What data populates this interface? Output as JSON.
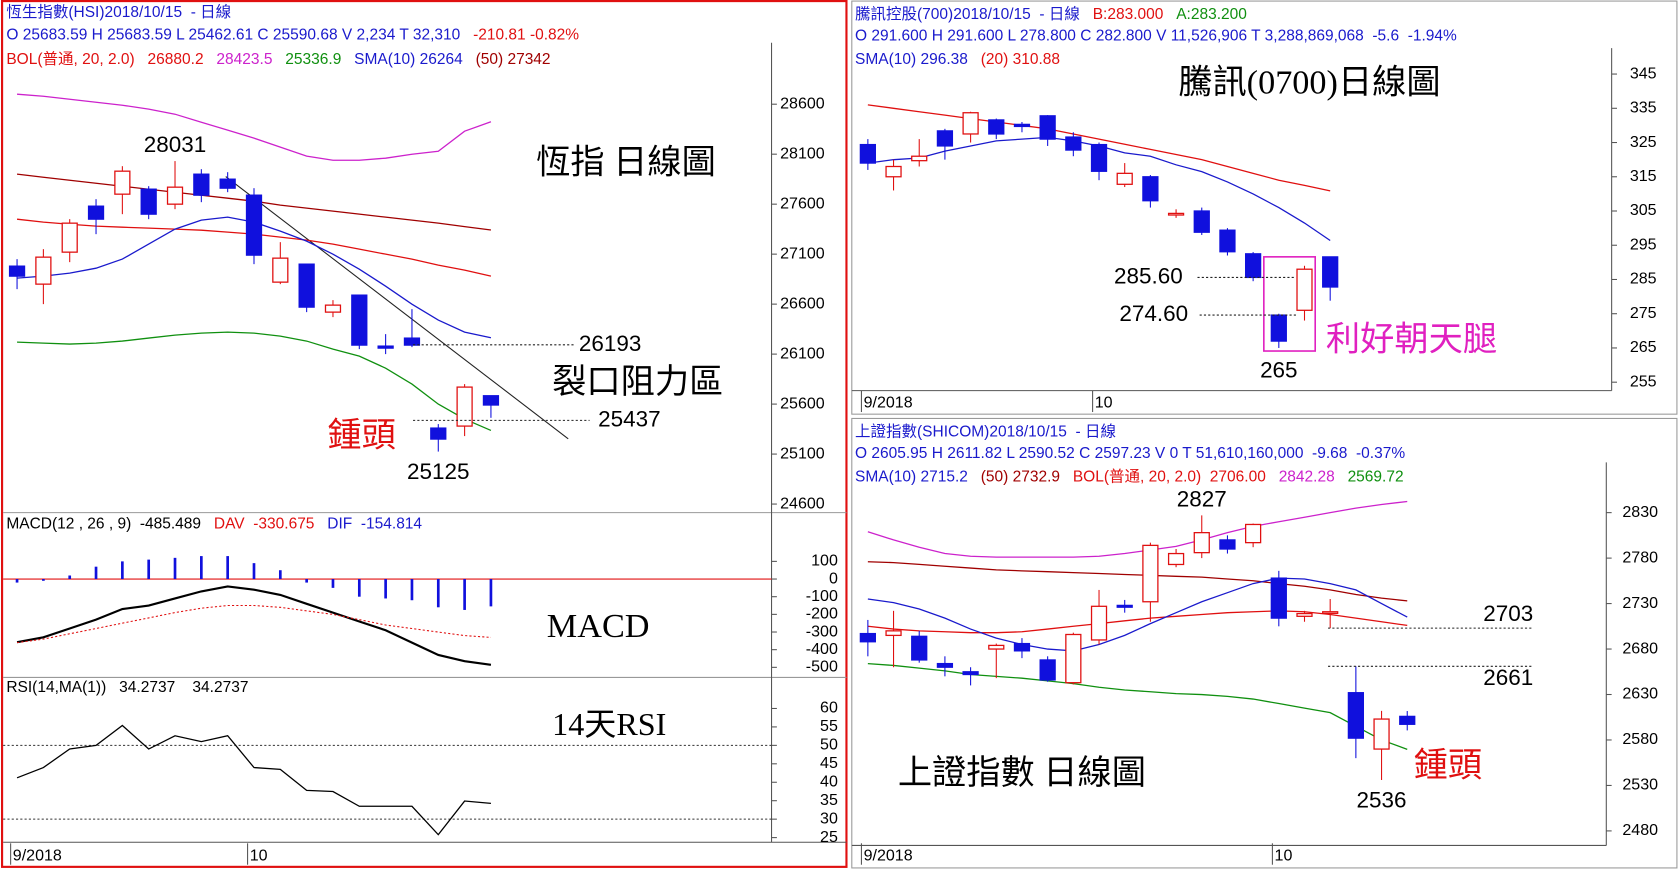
{
  "chart_data": [
    {
      "type": "candlestick",
      "header": [
        [
          {
            "text": "恆生指數(HSI)2018/10/15  - 日線",
            "color": "#1a1acc"
          }
        ],
        [
          {
            "text": "O 25683.59 H 25683.59 L 25462.61 C 25590.68 V 2,234 T 32,310",
            "color": "#1a1acc"
          },
          {
            "text": "-210.81 -0.82%",
            "color": "#e01010"
          }
        ],
        [
          {
            "text": "BOL(普通, 20, 2.0)",
            "color": "#e01010"
          },
          {
            "text": "26880.2",
            "color": "#e01010"
          },
          {
            "text": "28423.5",
            "color": "#cc22cc"
          },
          {
            "text": "25336.9",
            "color": "#109010"
          },
          {
            "text": "SMA(10) 26264",
            "color": "#1a1acc"
          },
          {
            "text": "(50) 27342",
            "color": "#a00000"
          }
        ]
      ],
      "open": [
        26980,
        26800,
        27120,
        27580,
        27700,
        27750,
        27600,
        27900,
        27850,
        27690,
        26820,
        27000,
        26520,
        26690,
        26180,
        26260,
        25360,
        25380,
        25683.59
      ],
      "close": [
        26880,
        27070,
        27410,
        27450,
        27930,
        27500,
        27770,
        27690,
        27760,
        27090,
        27060,
        26570,
        26590,
        26190,
        26160,
        26190,
        25250,
        25770,
        25590.68
      ],
      "high": [
        27050,
        27150,
        27450,
        27650,
        27980,
        27780,
        28031,
        27950,
        27920,
        27760,
        27220,
        27000,
        26640,
        26690,
        26300,
        26550,
        25400,
        25800,
        25683.59
      ],
      "low": [
        26750,
        26600,
        27020,
        27300,
        27500,
        27450,
        27550,
        27620,
        27720,
        27000,
        26800,
        26520,
        26470,
        26150,
        26100,
        26170,
        25125,
        25280,
        25462.61
      ],
      "up_color": "#e01010",
      "down_color": "#1010dd",
      "overlays": [
        {
          "color": "#cc22cc",
          "values": [
            28700,
            28680,
            28650,
            28620,
            28590,
            28550,
            28500,
            28420,
            28340,
            28260,
            28170,
            28080,
            28040,
            28040,
            28060,
            28100,
            28130,
            28330,
            28423.5
          ]
        },
        {
          "color": "#a00000",
          "values": [
            27900,
            27870,
            27840,
            27810,
            27780,
            27750,
            27720,
            27690,
            27660,
            27630,
            27590,
            27560,
            27530,
            27500,
            27470,
            27440,
            27410,
            27375,
            27342
          ]
        },
        {
          "color": "#e01010",
          "values": [
            27450,
            27420,
            27400,
            27380,
            27370,
            27360,
            27350,
            27340,
            27320,
            27300,
            27270,
            27240,
            27200,
            27150,
            27100,
            27050,
            26990,
            26940,
            26880.2
          ]
        },
        {
          "color": "#109010",
          "values": [
            26220,
            26210,
            26200,
            26210,
            26230,
            26260,
            26290,
            26310,
            26320,
            26310,
            26280,
            26230,
            26150,
            26080,
            25960,
            25800,
            25600,
            25450,
            25336.9
          ]
        },
        {
          "color": "#1a1acc",
          "values": [
            26860,
            26880,
            26910,
            26960,
            27050,
            27200,
            27350,
            27440,
            27470,
            27420,
            27330,
            27230,
            27100,
            26950,
            26780,
            26600,
            26440,
            26320,
            26264
          ]
        }
      ],
      "ylim": [
        24525,
        29000
      ],
      "yticks": [
        28600,
        28100,
        27600,
        27100,
        26600,
        26100,
        25600,
        25100,
        24600
      ],
      "levels": [
        26193,
        25437
      ],
      "annotations": [
        {
          "text": "恆指 日線圖",
          "color": "#000000"
        },
        {
          "text": "裂口阻力區",
          "color": "#000000"
        },
        {
          "text": "鍾頭",
          "color": "#e01010"
        }
      ]
    },
    {
      "type": "macd",
      "header": [
        [
          {
            "text": "MACD(12 , 26 , 9)  -485.489",
            "color": "#000000"
          },
          {
            "text": "DAV  -330.675",
            "color": "#e01010"
          },
          {
            "text": "DIF  -154.814",
            "color": "#1a1acc"
          }
        ]
      ],
      "histogram": [
        -20,
        -10,
        20,
        70,
        100,
        110,
        120,
        130,
        130,
        90,
        50,
        -20,
        -50,
        -100,
        -110,
        -120,
        -160,
        -175,
        -154.814
      ],
      "histogram_color": "#1010dd",
      "zero_color": "#e01010",
      "overlays": [
        {
          "color": "#000000",
          "values": [
            -358,
            -330,
            -280,
            -230,
            -170,
            -150,
            -110,
            -70,
            -42,
            -60,
            -90,
            -140,
            -190,
            -240,
            -290,
            -360,
            -430,
            -465,
            -485.489
          ]
        },
        {
          "color": "#e01010",
          "line_style": "dotted",
          "values": [
            -360,
            -340,
            -310,
            -280,
            -250,
            -220,
            -190,
            -165,
            -150,
            -150,
            -160,
            -180,
            -200,
            -230,
            -260,
            -280,
            -300,
            -320,
            -330.675
          ]
        }
      ],
      "ylim": [
        -539,
        267
      ],
      "yticks": [
        100,
        0,
        -100,
        -200,
        -300,
        -400,
        -500
      ],
      "annotations": [
        {
          "text": "MACD",
          "color": "#000000"
        }
      ]
    },
    {
      "type": "line",
      "header": [
        [
          {
            "text": "RSI(14,MA(1))   34.2737    34.2737",
            "color": "#000000"
          }
        ]
      ],
      "overlays": [
        {
          "color": "#000000",
          "values": [
            41.2,
            44,
            49,
            50,
            55.4,
            49,
            52.6,
            51,
            52.6,
            44,
            43.5,
            37.8,
            37.5,
            33.5,
            33.5,
            33.5,
            25.8,
            34.9,
            34.2737
          ]
        }
      ],
      "ref_lines": [
        50,
        30
      ],
      "ylim": [
        22,
        62.9
      ],
      "yticks": [
        60,
        55,
        50,
        45,
        40,
        35,
        30,
        25
      ],
      "categories": [
        "9/2018",
        null,
        null,
        null,
        null,
        null,
        null,
        null,
        null,
        "10",
        null,
        null,
        null,
        null,
        null,
        null,
        null,
        null,
        null
      ],
      "annotations": [
        {
          "text": "14天RSI",
          "color": "#000000"
        }
      ]
    },
    {
      "type": "candlestick",
      "header": [
        [
          {
            "text": "騰訊控股(700)2018/10/15  - 日線",
            "color": "#1a1acc"
          },
          {
            "text": "B:283.000",
            "color": "#e01010"
          },
          {
            "text": "A:283.200",
            "color": "#109010"
          }
        ],
        [
          {
            "text": "O 291.600 H 291.600 L 278.800 C 282.800 V 11,526,906 T 3,288,869,068  -5.6  -1.94%",
            "color": "#1a1acc"
          }
        ],
        [
          {
            "text": "SMA(10) 296.38",
            "color": "#1a1acc"
          },
          {
            "text": "(20) 310.88",
            "color": "#e01010"
          }
        ]
      ],
      "open": [
        324.4,
        315,
        319.7,
        328.4,
        327.5,
        331.6,
        330.3,
        332.8,
        326.6,
        324.4,
        312.8,
        315,
        304,
        305,
        299.4,
        292.5,
        274.6,
        276,
        291.6
      ],
      "close": [
        319,
        318,
        321,
        324,
        333.7,
        327.5,
        329.7,
        326,
        322.8,
        316.6,
        316,
        308,
        304.3,
        298.8,
        293.1,
        285.6,
        267,
        288,
        282.8
      ],
      "high": [
        326,
        320,
        326,
        329,
        334,
        332,
        331,
        333,
        328,
        325,
        319,
        315.5,
        305.5,
        306,
        300,
        293,
        275,
        289,
        291.6
      ],
      "low": [
        317,
        311,
        318,
        320,
        325,
        326,
        328,
        324,
        321,
        314,
        312,
        306,
        303,
        298,
        292,
        284.5,
        265,
        273,
        278.8
      ],
      "up_color": "#e01010",
      "down_color": "#1010dd",
      "overlays": [
        {
          "color": "#1a1acc",
          "values": [
            319,
            320,
            320.5,
            322.5,
            324,
            325.5,
            326,
            326.5,
            325.5,
            324,
            322,
            321,
            318.5,
            316.5,
            313.5,
            310,
            306,
            301.5,
            296.38
          ]
        },
        {
          "color": "#e01010",
          "values": [
            336,
            335,
            334,
            333,
            332,
            331,
            330,
            329,
            327.5,
            326,
            324.5,
            323,
            321.5,
            320,
            318,
            316,
            314,
            312.5,
            310.88
          ]
        }
      ],
      "ylim": [
        251.6,
        351
      ],
      "yticks": [
        345,
        335,
        325,
        315,
        305,
        295,
        285,
        275,
        265,
        255
      ],
      "categories": [
        "9/2018",
        null,
        null,
        null,
        null,
        null,
        null,
        null,
        null,
        "10",
        null,
        null,
        null,
        null,
        null,
        null,
        null,
        null,
        null
      ],
      "levels": [
        {
          "value": 285.6,
          "label": "285.60"
        },
        {
          "value": 274.6,
          "label": "274.60"
        }
      ],
      "annotations": [
        {
          "text": "騰訊(0700)日線圖",
          "color": "#000000"
        },
        {
          "text": "利好朝天腿",
          "color": "#e020c0"
        }
      ]
    },
    {
      "type": "candlestick",
      "header": [
        [
          {
            "text": "上證指數(SHICOM)2018/10/15  - 日線",
            "color": "#1a1acc"
          }
        ],
        [
          {
            "text": "O 2605.95 H 2611.82 L 2590.52 C 2597.23 V 0 T 51,610,160,000  -9.68  -0.37%",
            "color": "#1a1acc"
          }
        ],
        [
          {
            "text": "SMA(10) 2715.2",
            "color": "#1a1acc"
          },
          {
            "text": "(50) 2732.9",
            "color": "#a00000"
          },
          {
            "text": "BOL(普通, 20, 2.0)  2706.00",
            "color": "#e01010"
          },
          {
            "text": "2842.28",
            "color": "#cc22cc"
          },
          {
            "text": "2569.72",
            "color": "#109010"
          }
        ]
      ],
      "open": [
        2697,
        2695,
        2694,
        2664,
        2655,
        2680,
        2686,
        2668,
        2643,
        2690,
        2728,
        2732,
        2773,
        2786,
        2800,
        2797,
        2758,
        2716,
        2720,
        2632,
        2570,
        2605.95
      ],
      "close": [
        2688,
        2700,
        2668,
        2660,
        2652,
        2684,
        2678,
        2646,
        2696,
        2727,
        2726,
        2794,
        2785,
        2808,
        2790,
        2817,
        2714,
        2719,
        2721,
        2582,
        2603,
        2597.23
      ],
      "high": [
        2712,
        2722,
        2700,
        2672,
        2660,
        2686,
        2692,
        2672,
        2698,
        2745,
        2734,
        2797,
        2790,
        2827,
        2805,
        2818,
        2766,
        2722,
        2735,
        2661,
        2612,
        2611.82
      ],
      "low": [
        2672,
        2660,
        2665,
        2650,
        2640,
        2648,
        2670,
        2644,
        2641,
        2685,
        2720,
        2710,
        2770,
        2780,
        2785,
        2792,
        2705,
        2710,
        2703,
        2560,
        2536,
        2590.52
      ],
      "up_color": "#e01010",
      "down_color": "#1010dd",
      "overlays": [
        {
          "color": "#cc22cc",
          "values": [
            2809,
            2800,
            2792,
            2785,
            2782,
            2781,
            2781,
            2781,
            2781,
            2782,
            2785,
            2789,
            2793,
            2800,
            2808,
            2815,
            2820,
            2825,
            2830,
            2835,
            2839,
            2842.28
          ]
        },
        {
          "color": "#a00000",
          "values": [
            2776,
            2775,
            2773,
            2771,
            2769,
            2767,
            2766,
            2765,
            2764,
            2763,
            2762,
            2761,
            2760,
            2759,
            2757,
            2755,
            2752,
            2749,
            2745,
            2740,
            2736,
            2732.9
          ]
        },
        {
          "color": "#e01010",
          "values": [
            2705,
            2702,
            2700,
            2699,
            2698,
            2698,
            2699,
            2702,
            2705,
            2708,
            2711,
            2714,
            2716,
            2718,
            2720,
            2721,
            2722,
            2721,
            2718,
            2714,
            2710,
            2706
          ]
        },
        {
          "color": "#109010",
          "values": [
            2664,
            2662,
            2659,
            2656,
            2652,
            2650,
            2648,
            2645,
            2642,
            2638,
            2635,
            2633,
            2631,
            2630,
            2628,
            2625,
            2620,
            2615,
            2610,
            2595,
            2580,
            2569.72
          ]
        },
        {
          "color": "#1a1acc",
          "values": [
            2735,
            2731,
            2724,
            2714,
            2702,
            2692,
            2685,
            2680,
            2678,
            2685,
            2695,
            2708,
            2720,
            2732,
            2742,
            2752,
            2758,
            2757,
            2752,
            2745,
            2730,
            2715.2
          ]
        }
      ],
      "ylim": [
        2464,
        2881.8
      ],
      "yticks": [
        2830,
        2780,
        2730,
        2680,
        2630,
        2580,
        2530,
        2480
      ],
      "categories": [
        "9/2018",
        null,
        null,
        null,
        null,
        null,
        null,
        null,
        null,
        null,
        null,
        null,
        null,
        null,
        null,
        null,
        "10",
        null,
        null,
        null,
        null,
        null
      ],
      "levels": [
        2703,
        2661
      ],
      "annotations": [
        {
          "text": "上證指數 日線圖",
          "color": "#000000"
        },
        {
          "text": "鍾頭",
          "color": "#e01010"
        }
      ]
    }
  ]
}
